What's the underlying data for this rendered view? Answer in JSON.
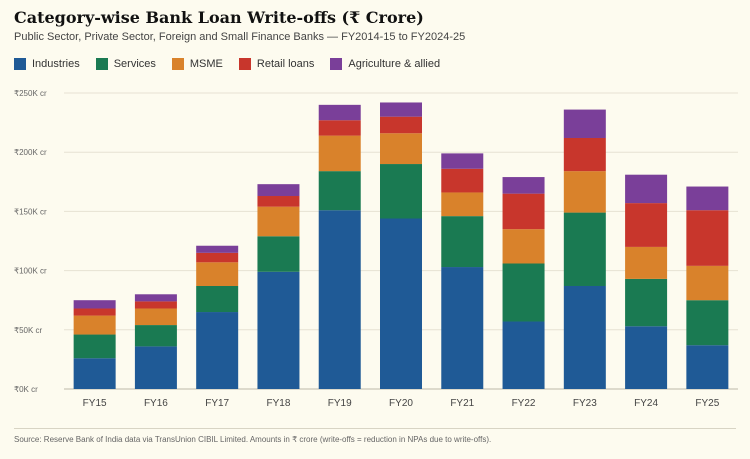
{
  "title": "Category-wise Bank Loan Write-offs (₹ Crore)",
  "subtitle": "Public Sector, Private Sector, Foreign and Small Finance Banks — FY2014-15 to FY2024-25",
  "source": "Source: Reserve Bank of India data via TransUnion CIBIL Limited. Amounts in ₹ crore (write-offs = reduction in NPAs due to write-offs).",
  "colors": {
    "Industries": "#1f5a96",
    "Services": "#1a7a52",
    "MSME": "#d9822b",
    "Retail loans": "#c8362c",
    "Agriculture & allied": "#7a3f99"
  },
  "chart_data": {
    "type": "bar",
    "stacked": true,
    "categories": [
      "FY15",
      "FY16",
      "FY17",
      "FY18",
      "FY19",
      "FY20",
      "FY21",
      "FY22",
      "FY23",
      "FY24",
      "FY25"
    ],
    "series": [
      {
        "name": "Industries",
        "values": [
          26000,
          36000,
          65000,
          99000,
          151000,
          144000,
          103000,
          57000,
          87000,
          53000,
          37000
        ]
      },
      {
        "name": "Services",
        "values": [
          20000,
          18000,
          22000,
          30000,
          33000,
          46000,
          43000,
          49000,
          62000,
          40000,
          38000
        ]
      },
      {
        "name": "MSME",
        "values": [
          16000,
          14000,
          20000,
          25000,
          30000,
          26000,
          20000,
          29000,
          35000,
          27000,
          29000
        ]
      },
      {
        "name": "Retail loans",
        "values": [
          6000,
          6000,
          8000,
          9000,
          13000,
          14000,
          20000,
          30000,
          28000,
          37000,
          47000
        ]
      },
      {
        "name": "Agriculture & allied",
        "values": [
          7000,
          6000,
          6000,
          10000,
          13000,
          12000,
          13000,
          14000,
          24000,
          24000,
          20000
        ]
      }
    ],
    "yticks": [
      "₹0K cr",
      "₹50K cr",
      "₹100K cr",
      "₹150K cr",
      "₹200K cr",
      "₹250K cr"
    ],
    "ylim": [
      0,
      250000
    ],
    "grid": true,
    "legend": "top-left"
  }
}
